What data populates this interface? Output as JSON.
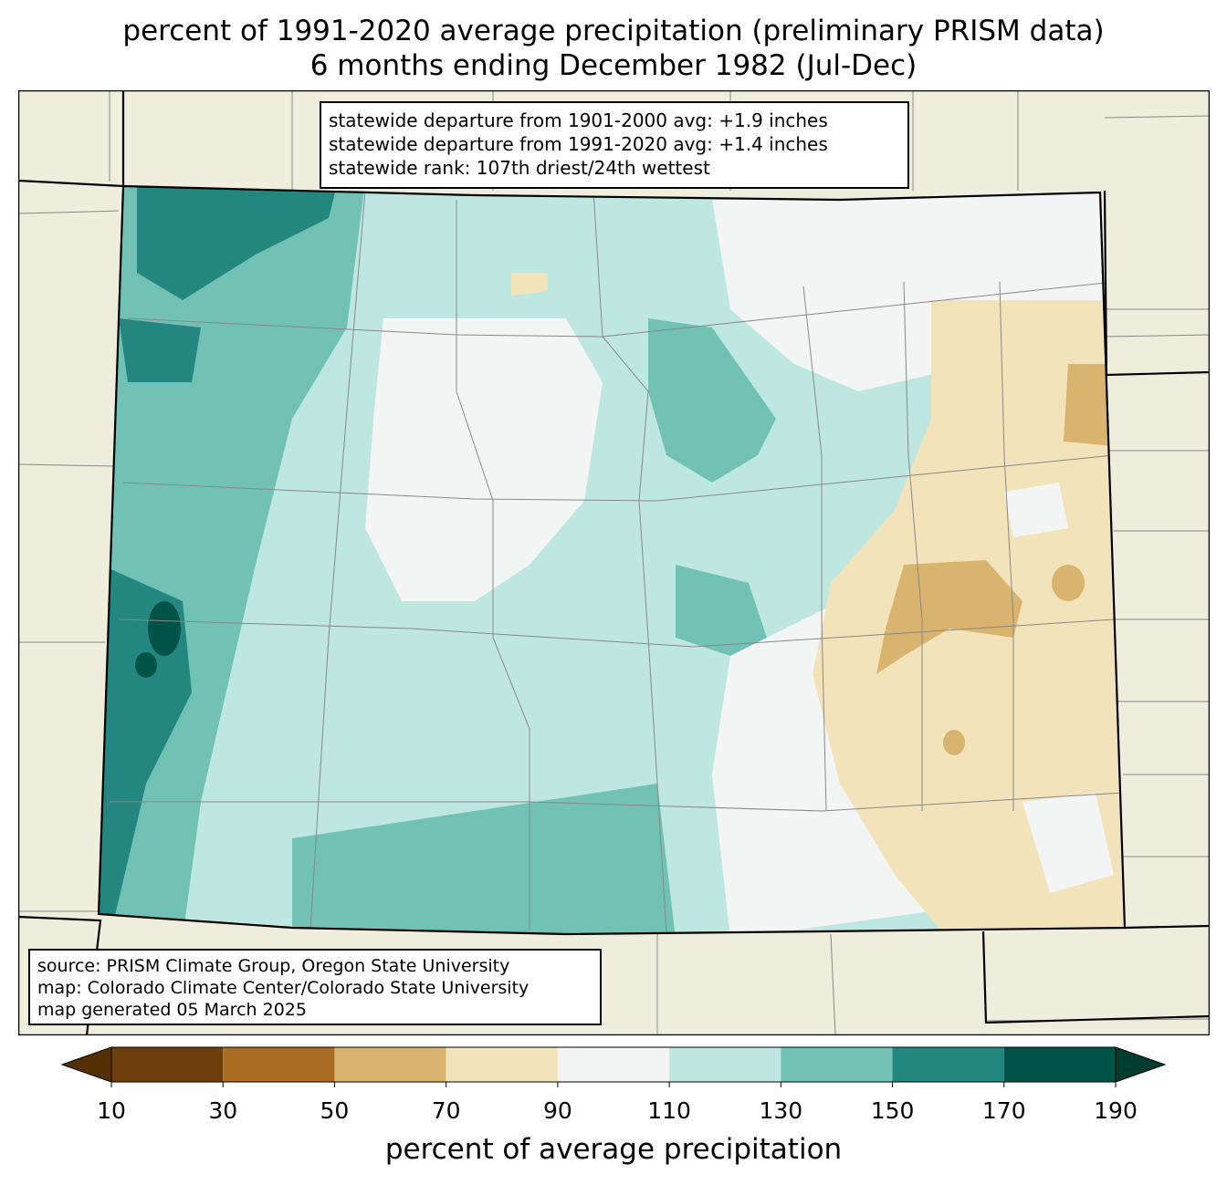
{
  "title": {
    "line1": "percent of 1991-2020 average precipitation (preliminary PRISM data)",
    "line2": "6 months ending December 1982 (Jul-Dec)"
  },
  "stats_box": {
    "line1": "statewide departure from 1901-2000 avg: +1.9 inches",
    "line2": "statewide departure from 1991-2020 avg: +1.4 inches",
    "line3": "statewide rank: 107th driest/24th wettest"
  },
  "credits_box": {
    "line1": "source: PRISM Climate Group, Oregon State University",
    "line2": "map: Colorado Climate Center/Colorado State University",
    "line3": "map generated 05 March 2025"
  },
  "colorbar": {
    "label": "percent of average precipitation",
    "ticks": [
      "10",
      "30",
      "50",
      "70",
      "90",
      "110",
      "130",
      "150",
      "170",
      "190"
    ],
    "bins": [
      {
        "min": 10,
        "max": 30,
        "color": "#6e3f0c"
      },
      {
        "min": 30,
        "max": 50,
        "color": "#a96c23"
      },
      {
        "min": 50,
        "max": 70,
        "color": "#d9b46e"
      },
      {
        "min": 70,
        "max": 90,
        "color": "#f3e3ba"
      },
      {
        "min": 90,
        "max": 110,
        "color": "#f3f5f4"
      },
      {
        "min": 110,
        "max": 130,
        "color": "#bfe7e1"
      },
      {
        "min": 130,
        "max": 150,
        "color": "#71c1b4"
      },
      {
        "min": 150,
        "max": 170,
        "color": "#238780"
      },
      {
        "min": 170,
        "max": 190,
        "color": "#005347"
      }
    ],
    "under_color": "#543005",
    "over_color": "#003c30"
  },
  "map_colors": {
    "background": "#efeddb",
    "state_border": "#000000",
    "county_border": "#888888"
  }
}
